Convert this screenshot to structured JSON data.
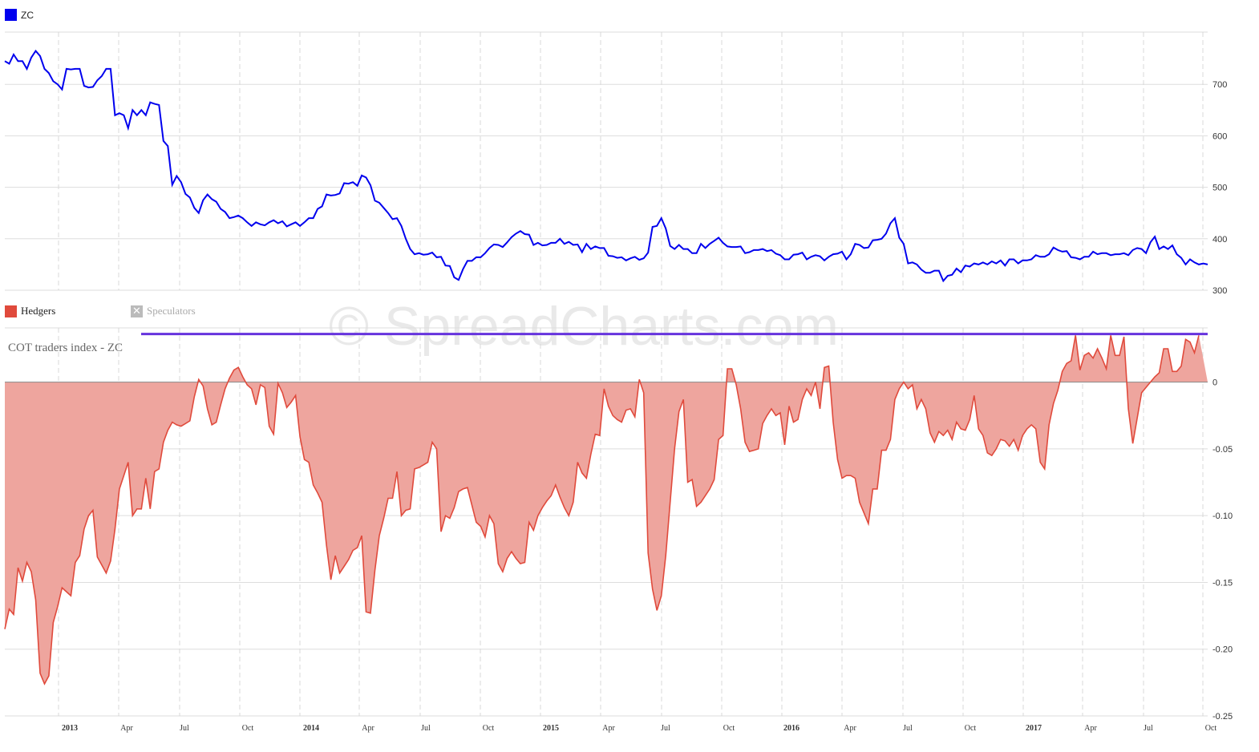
{
  "legend": {
    "price_series": "ZC",
    "hedgers": "Hedgers",
    "speculators": "Speculators"
  },
  "subtitle": "COT traders index - ZC",
  "watermark": "© SpreadCharts.com",
  "colors": {
    "price_line": "#0000ee",
    "hedgers_line": "#e04a3c",
    "hedgers_fill": "#eea59e",
    "index_line": "#6633dd",
    "grid": "#dddddd"
  },
  "icons": {
    "speculators_toggle": "x-icon"
  },
  "chart_data": [
    {
      "type": "line",
      "series": [
        {
          "name": "ZC",
          "values": [
            745,
            740,
            758,
            745,
            745,
            730,
            752,
            765,
            755,
            730,
            722,
            706,
            700,
            690,
            730,
            729,
            730,
            730,
            697,
            694,
            695,
            708,
            716,
            730,
            730,
            640,
            644,
            640,
            615,
            650,
            640,
            650,
            640,
            665,
            662,
            660,
            590,
            580,
            505,
            522,
            510,
            487,
            480,
            460,
            450,
            475,
            486,
            477,
            472,
            458,
            452,
            440,
            442,
            445,
            440,
            432,
            425,
            432,
            428,
            426,
            432,
            436,
            430,
            434,
            424,
            428,
            432,
            425,
            432,
            440,
            440,
            458,
            463,
            486,
            484,
            485,
            488,
            508,
            507,
            510,
            503,
            523,
            519,
            504,
            474,
            470,
            460,
            450,
            438,
            440,
            425,
            400,
            380,
            370,
            372,
            369,
            370,
            373,
            364,
            365,
            348,
            347,
            325,
            320,
            341,
            357,
            357,
            364,
            364,
            372,
            382,
            389,
            388,
            384,
            393,
            403,
            410,
            415,
            409,
            408,
            388,
            392,
            387,
            388,
            392,
            392,
            400,
            390,
            394,
            388,
            389,
            374,
            390,
            380,
            385,
            382,
            382,
            367,
            366,
            363,
            364,
            358,
            362,
            365,
            359,
            362,
            373,
            423,
            425,
            440,
            420,
            386,
            380,
            388,
            380,
            380,
            372,
            372,
            390,
            382,
            390,
            396,
            402,
            392,
            385,
            384,
            384,
            385,
            372,
            374,
            378,
            378,
            380,
            376,
            378,
            371,
            368,
            360,
            360,
            369,
            370,
            373,
            360,
            365,
            368,
            366,
            358,
            365,
            370,
            371,
            375,
            360,
            370,
            390,
            388,
            382,
            383,
            397,
            398,
            400,
            410,
            430,
            440,
            402,
            390,
            352,
            354,
            350,
            340,
            334,
            334,
            338,
            338,
            318,
            328,
            330,
            342,
            335,
            348,
            346,
            352,
            350,
            354,
            350,
            356,
            352,
            358,
            348,
            360,
            360,
            352,
            358,
            358,
            360,
            368,
            365,
            365,
            370,
            383,
            378,
            375,
            376,
            364,
            363,
            360,
            365,
            365,
            375,
            370,
            372,
            372,
            368,
            370,
            370,
            372,
            368,
            378,
            382,
            380,
            372,
            393,
            404,
            380,
            385,
            380,
            387,
            370,
            363,
            350,
            360,
            354,
            350,
            352,
            350
          ]
        }
      ],
      "ylim": [
        300,
        800
      ],
      "yticks": [
        "300",
        "400",
        "500",
        "600",
        "700"
      ]
    },
    {
      "type": "area",
      "subtitle": "COT traders index - ZC",
      "series": [
        {
          "name": "Hedgers",
          "values": [
            -0.185,
            -0.17,
            -0.174,
            -0.139,
            -0.149,
            -0.135,
            -0.142,
            -0.163,
            -0.218,
            -0.226,
            -0.22,
            -0.18,
            -0.168,
            -0.154,
            -0.157,
            -0.16,
            -0.135,
            -0.13,
            -0.11,
            -0.1,
            -0.096,
            -0.131,
            -0.137,
            -0.143,
            -0.134,
            -0.11,
            -0.08,
            -0.07,
            -0.06,
            -0.1,
            -0.095,
            -0.095,
            -0.072,
            -0.095,
            -0.067,
            -0.065,
            -0.045,
            -0.036,
            -0.03,
            -0.032,
            -0.033,
            -0.031,
            -0.029,
            -0.011,
            0.002,
            -0.003,
            -0.02,
            -0.032,
            -0.03,
            -0.017,
            -0.005,
            0.003,
            0.009,
            0.011,
            0.004,
            -0.002,
            -0.005,
            -0.017,
            -0.002,
            -0.004,
            -0.033,
            -0.039,
            -0.001,
            -0.008,
            -0.019,
            -0.015,
            -0.01,
            -0.041,
            -0.058,
            -0.06,
            -0.077,
            -0.083,
            -0.09,
            -0.122,
            -0.148,
            -0.13,
            -0.143,
            -0.138,
            -0.133,
            -0.126,
            -0.124,
            -0.115,
            -0.172,
            -0.173,
            -0.141,
            -0.115,
            -0.102,
            -0.087,
            -0.087,
            -0.067,
            -0.1,
            -0.096,
            -0.095,
            -0.065,
            -0.064,
            -0.062,
            -0.06,
            -0.045,
            -0.05,
            -0.112,
            -0.1,
            -0.102,
            -0.094,
            -0.082,
            -0.08,
            -0.079,
            -0.092,
            -0.105,
            -0.108,
            -0.116,
            -0.1,
            -0.106,
            -0.136,
            -0.142,
            -0.132,
            -0.127,
            -0.132,
            -0.136,
            -0.135,
            -0.105,
            -0.111,
            -0.1,
            -0.094,
            -0.089,
            -0.085,
            -0.077,
            -0.086,
            -0.094,
            -0.1,
            -0.09,
            -0.06,
            -0.068,
            -0.072,
            -0.054,
            -0.039,
            -0.04,
            -0.005,
            -0.018,
            -0.025,
            -0.028,
            -0.03,
            -0.021,
            -0.02,
            -0.026,
            0.002,
            -0.008,
            -0.128,
            -0.155,
            -0.171,
            -0.16,
            -0.13,
            -0.09,
            -0.05,
            -0.022,
            -0.013,
            -0.075,
            -0.073,
            -0.093,
            -0.09,
            -0.085,
            -0.08,
            -0.073,
            -0.043,
            -0.04,
            0.01,
            0.01,
            -0.002,
            -0.02,
            -0.045,
            -0.052,
            -0.051,
            -0.05,
            -0.031,
            -0.025,
            -0.02,
            -0.025,
            -0.023,
            -0.047,
            -0.018,
            -0.03,
            -0.028,
            -0.013,
            -0.005,
            -0.01,
            0.0,
            -0.02,
            0.011,
            0.012,
            -0.03,
            -0.058,
            -0.072,
            -0.07,
            -0.07,
            -0.072,
            -0.09,
            -0.098,
            -0.106,
            -0.08,
            -0.08,
            -0.051,
            -0.051,
            -0.043,
            -0.013,
            -0.005,
            0.0,
            -0.005,
            -0.002,
            -0.02,
            -0.013,
            -0.02,
            -0.038,
            -0.045,
            -0.037,
            -0.04,
            -0.036,
            -0.043,
            -0.03,
            -0.035,
            -0.036,
            -0.028,
            -0.01,
            -0.035,
            -0.04,
            -0.053,
            -0.055,
            -0.05,
            -0.043,
            -0.044,
            -0.048,
            -0.043,
            -0.051,
            -0.04,
            -0.035,
            -0.032,
            -0.035,
            -0.06,
            -0.065,
            -0.032,
            -0.016,
            -0.006,
            0.008,
            0.014,
            0.016,
            0.035,
            0.009,
            0.02,
            0.022,
            0.018,
            0.025,
            0.018,
            0.01,
            0.035,
            0.02,
            0.02,
            0.034,
            -0.02,
            -0.046,
            -0.027,
            -0.008,
            -0.004,
            0.0,
            0.004,
            0.007,
            0.025,
            0.025,
            0.008,
            0.008,
            0.012,
            0.032,
            0.03,
            0.022,
            0.035
          ]
        }
      ],
      "reference_line": {
        "y": 0.036
      },
      "ylim": [
        -0.25,
        0.04
      ],
      "yticks": [
        "-0.25",
        "-0.20",
        "-0.15",
        "-0.10",
        "-0.05",
        "0"
      ]
    }
  ],
  "x_axis": {
    "labels": [
      {
        "text": "2013",
        "year": true
      },
      {
        "text": "Apr",
        "year": false
      },
      {
        "text": "Jul",
        "year": false
      },
      {
        "text": "Oct",
        "year": false
      },
      {
        "text": "2014",
        "year": true
      },
      {
        "text": "Apr",
        "year": false
      },
      {
        "text": "Jul",
        "year": false
      },
      {
        "text": "Oct",
        "year": false
      },
      {
        "text": "2015",
        "year": true
      },
      {
        "text": "Apr",
        "year": false
      },
      {
        "text": "Jul",
        "year": false
      },
      {
        "text": "Oct",
        "year": false
      },
      {
        "text": "2016",
        "year": true
      },
      {
        "text": "Apr",
        "year": false
      },
      {
        "text": "Jul",
        "year": false
      },
      {
        "text": "Oct",
        "year": false
      },
      {
        "text": "2017",
        "year": true
      },
      {
        "text": "Apr",
        "year": false
      },
      {
        "text": "Jul",
        "year": false
      },
      {
        "text": "Oct",
        "year": false
      }
    ]
  }
}
